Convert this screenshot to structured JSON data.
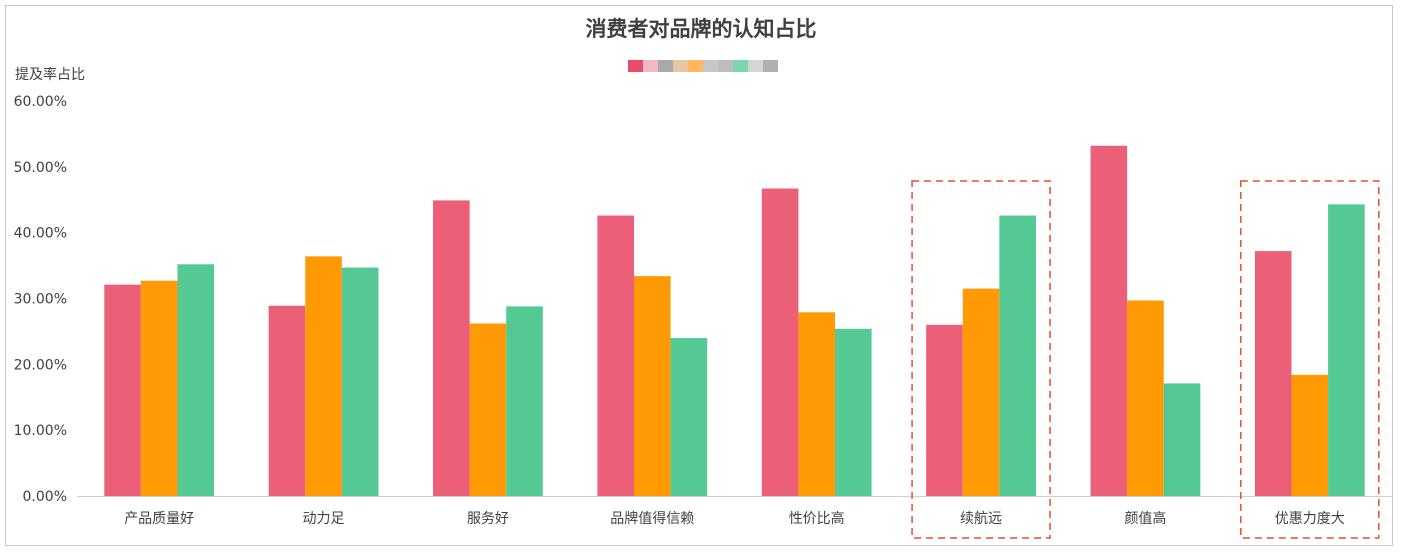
{
  "colors": {
    "series_1": "#ec5f79",
    "series_2": "#ff9a05",
    "series_3": "#54c993",
    "axis": "#d0d0d0",
    "highlight": "#e0512e",
    "legend_blur": [
      "#e84c6a",
      "#f2b8c3",
      "#a9a9a9",
      "#e8c7a0",
      "#ffb95c",
      "#c7c7c7",
      "#bdbdbd",
      "#7ad6ac",
      "#d5d5d5",
      "#b0b0b0"
    ]
  },
  "chart_data": {
    "type": "bar",
    "title": "消费者对品牌的认知占比",
    "ylabel": "提及率占比",
    "xlabel": "",
    "ylim": [
      0,
      0.6
    ],
    "yticks": [
      {
        "value": 0,
        "label": "0.00%"
      },
      {
        "value": 0.1,
        "label": "10.00%"
      },
      {
        "value": 0.2,
        "label": "20.00%"
      },
      {
        "value": 0.3,
        "label": "30.00%"
      },
      {
        "value": 0.4,
        "label": "40.00%"
      },
      {
        "value": 0.5,
        "label": "50.00%"
      },
      {
        "value": 0.6,
        "label": "60.00%"
      }
    ],
    "grid": false,
    "legend": "top-center",
    "categories": [
      "产品质量好",
      "动力足",
      "服务好",
      "品牌值得信赖",
      "性价比高",
      "续航远",
      "颜值高",
      "优惠力度大"
    ],
    "series": [
      {
        "values": [
          0.321,
          0.289,
          0.449,
          0.426,
          0.467,
          0.26,
          0.532,
          0.372
        ]
      },
      {
        "values": [
          0.327,
          0.364,
          0.262,
          0.334,
          0.279,
          0.315,
          0.297,
          0.184
        ]
      },
      {
        "values": [
          0.352,
          0.347,
          0.288,
          0.24,
          0.254,
          0.426,
          0.171,
          0.443
        ]
      }
    ],
    "highlighted_categories": [
      "续航远",
      "优惠力度大"
    ]
  }
}
